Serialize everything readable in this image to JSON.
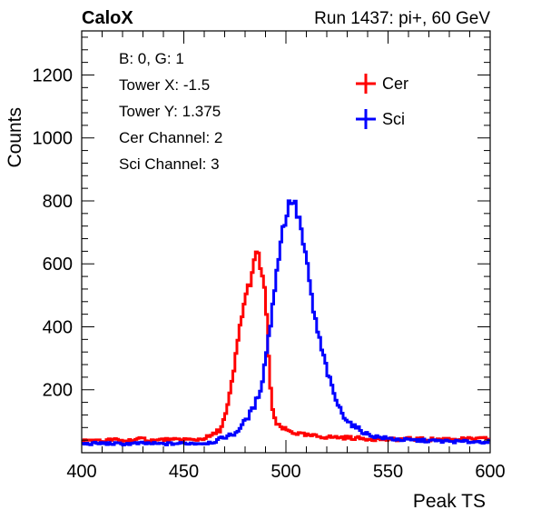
{
  "header": {
    "experiment": "CaloX",
    "run_info": "Run 1437: pi+, 60 GeV"
  },
  "info_box": [
    "B: 0, G: 1",
    "Tower X: -1.5",
    "Tower Y: 1.375",
    "Cer Channel: 2",
    "Sci Channel: 3"
  ],
  "chart_data": {
    "type": "line",
    "style": "step-histogram",
    "xlabel": "Peak TS",
    "ylabel": "Counts",
    "xlim": [
      400,
      600
    ],
    "ylim": [
      0,
      1340
    ],
    "x_ticks": [
      400,
      450,
      500,
      550,
      600
    ],
    "y_ticks": [
      200,
      400,
      600,
      800,
      1000,
      1200
    ],
    "grid": false,
    "legend_position": "top-right",
    "series": [
      {
        "name": "Cer",
        "color": "#ff0000",
        "anchors": [
          [
            400,
            38
          ],
          [
            405,
            40
          ],
          [
            410,
            36
          ],
          [
            415,
            42
          ],
          [
            420,
            38
          ],
          [
            425,
            40
          ],
          [
            430,
            44
          ],
          [
            435,
            38
          ],
          [
            440,
            42
          ],
          [
            445,
            40
          ],
          [
            450,
            43
          ],
          [
            455,
            40
          ],
          [
            460,
            46
          ],
          [
            464,
            55
          ],
          [
            468,
            75
          ],
          [
            471,
            130
          ],
          [
            473,
            200
          ],
          [
            475,
            280
          ],
          [
            477,
            380
          ],
          [
            479,
            460
          ],
          [
            481,
            510
          ],
          [
            483,
            560
          ],
          [
            485,
            610
          ],
          [
            486,
            645
          ],
          [
            487,
            600
          ],
          [
            488,
            585
          ],
          [
            489,
            540
          ],
          [
            490,
            480
          ],
          [
            491,
            380
          ],
          [
            492,
            250
          ],
          [
            493,
            160
          ],
          [
            494,
            110
          ],
          [
            496,
            85
          ],
          [
            498,
            80
          ],
          [
            500,
            72
          ],
          [
            505,
            62
          ],
          [
            510,
            55
          ],
          [
            520,
            50
          ],
          [
            530,
            48
          ],
          [
            540,
            44
          ],
          [
            550,
            42
          ],
          [
            560,
            44
          ],
          [
            570,
            42
          ],
          [
            580,
            44
          ],
          [
            590,
            43
          ],
          [
            600,
            45
          ]
        ]
      },
      {
        "name": "Sci",
        "color": "#0000ff",
        "anchors": [
          [
            400,
            28
          ],
          [
            410,
            30
          ],
          [
            420,
            28
          ],
          [
            430,
            30
          ],
          [
            440,
            28
          ],
          [
            450,
            30
          ],
          [
            460,
            30
          ],
          [
            465,
            35
          ],
          [
            470,
            50
          ],
          [
            475,
            60
          ],
          [
            480,
            100
          ],
          [
            484,
            140
          ],
          [
            487,
            190
          ],
          [
            489,
            250
          ],
          [
            491,
            350
          ],
          [
            493,
            430
          ],
          [
            495,
            560
          ],
          [
            497,
            650
          ],
          [
            499,
            730
          ],
          [
            501,
            770
          ],
          [
            502,
            800
          ],
          [
            503,
            810
          ],
          [
            504,
            790
          ],
          [
            505,
            770
          ],
          [
            507,
            730
          ],
          [
            509,
            640
          ],
          [
            511,
            570
          ],
          [
            513,
            470
          ],
          [
            515,
            400
          ],
          [
            517,
            340
          ],
          [
            519,
            290
          ],
          [
            521,
            240
          ],
          [
            523,
            195
          ],
          [
            525,
            160
          ],
          [
            527,
            130
          ],
          [
            530,
            105
          ],
          [
            533,
            85
          ],
          [
            537,
            70
          ],
          [
            540,
            58
          ],
          [
            545,
            50
          ],
          [
            550,
            45
          ],
          [
            555,
            42
          ],
          [
            560,
            40
          ],
          [
            570,
            38
          ],
          [
            580,
            36
          ],
          [
            590,
            35
          ],
          [
            600,
            35
          ]
        ]
      }
    ]
  }
}
